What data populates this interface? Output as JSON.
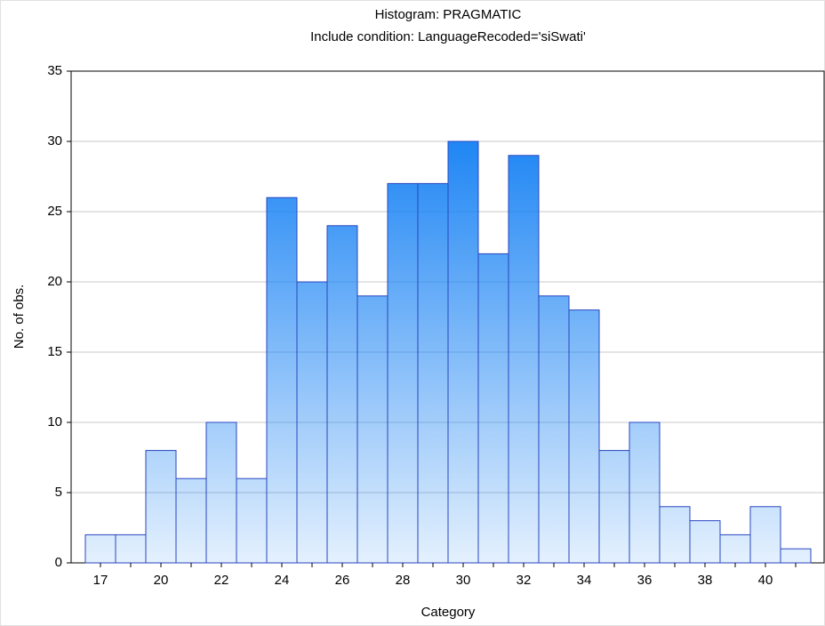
{
  "chart_data": {
    "type": "bar",
    "title": "Histogram: PRAGMATIC",
    "subtitle": "Include condition: LanguageRecoded='siSwati'",
    "x_label": "Category",
    "y_label": "No. of obs.",
    "categories": [
      "17",
      null,
      "20",
      null,
      "22",
      null,
      "24",
      null,
      "26",
      null,
      "28",
      null,
      "30",
      null,
      "32",
      null,
      "34",
      null,
      "36",
      null,
      "38",
      null,
      "40",
      null
    ],
    "values": [
      2,
      2,
      8,
      6,
      10,
      6,
      26,
      20,
      24,
      19,
      27,
      27,
      30,
      22,
      29,
      19,
      18,
      8,
      10,
      4,
      3,
      2,
      4,
      1
    ],
    "color": "#1f86f4",
    "ylim": [
      0,
      35
    ],
    "yticks": [
      0,
      5,
      10,
      15,
      20,
      25,
      30,
      35
    ],
    "grid": true
  }
}
